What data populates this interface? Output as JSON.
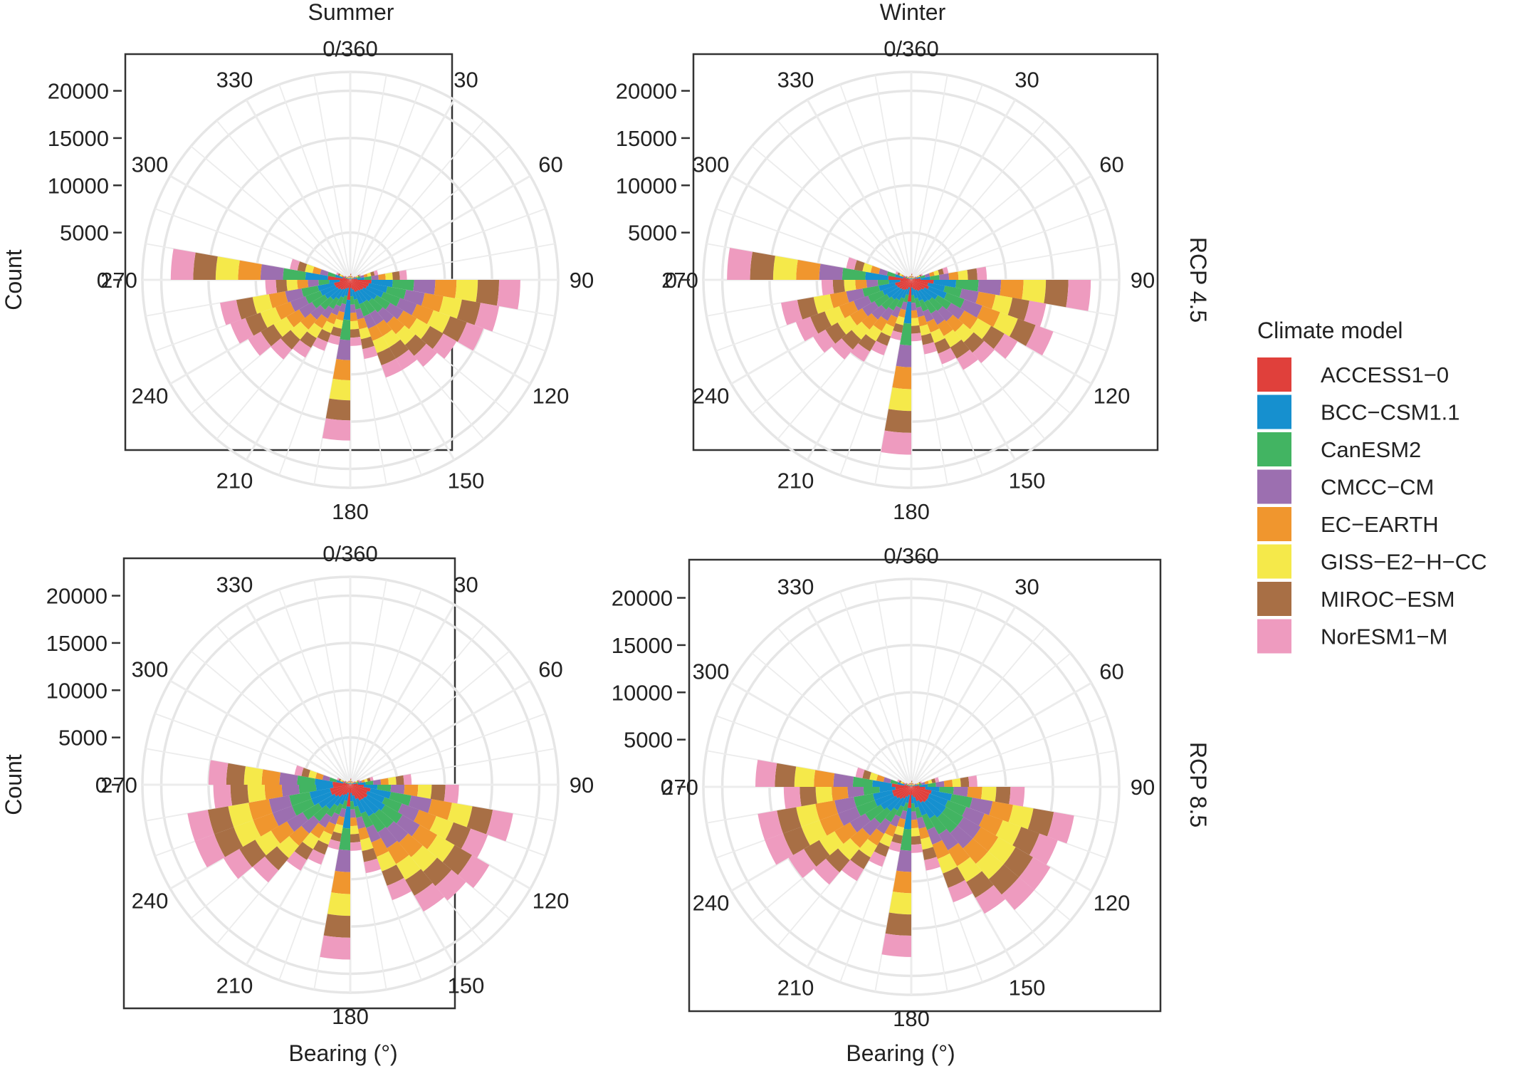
{
  "columns": [
    "Summer",
    "Winter"
  ],
  "rows": [
    "RCP 4.5",
    "RCP 8.5"
  ],
  "legend": {
    "title": "Climate model",
    "placement": "right",
    "items": [
      {
        "name": "ACCESS1−0",
        "color": "#e0403b"
      },
      {
        "name": "BCC−CSM1.1",
        "color": "#1690cf"
      },
      {
        "name": "CanESM2",
        "color": "#42b462"
      },
      {
        "name": "CMCC−CM",
        "color": "#9c6fb0"
      },
      {
        "name": "EC−EARTH",
        "color": "#f0962e"
      },
      {
        "name": "GISS−E2−H−CC",
        "color": "#f5e94a"
      },
      {
        "name": "MIROC−ESM",
        "color": "#a86f45"
      },
      {
        "name": "NorESM1−M",
        "color": "#ee9bbf"
      }
    ]
  },
  "chart_data": {
    "type": "bar",
    "subtype": "stacked-polar-histogram",
    "xlabel": "Bearing (°)",
    "ylabel": "Count",
    "x_ticks": [
      "0/360",
      "30",
      "60",
      "90",
      "120",
      "150",
      "180",
      "210",
      "240",
      "270",
      "300",
      "330"
    ],
    "y_ticks": [
      0,
      5000,
      10000,
      15000,
      20000
    ],
    "ylim": [
      0,
      22000
    ],
    "grid": true,
    "bin_width_deg": 10,
    "bins_deg": [
      0,
      10,
      20,
      30,
      40,
      50,
      60,
      70,
      80,
      90,
      100,
      110,
      120,
      130,
      140,
      150,
      160,
      170,
      180,
      190,
      200,
      210,
      220,
      230,
      240,
      250,
      260,
      270,
      280,
      290,
      300,
      310,
      320,
      330,
      340,
      350
    ],
    "series_order": [
      "ACCESS1−0",
      "BCC−CSM1.1",
      "CanESM2",
      "CMCC−CM",
      "EC−EARTH",
      "GISS−E2−H−CC",
      "MIROC−ESM",
      "NorESM1−M"
    ],
    "panels": [
      {
        "column": "Summer",
        "row": "RCP 4.5",
        "bin_totals": [
          700,
          450,
          450,
          450,
          380,
          600,
          1200,
          3000,
          6000,
          18000,
          16000,
          15000,
          13000,
          12000,
          11000,
          11000,
          8500,
          7000,
          17000,
          7000,
          8000,
          9500,
          11000,
          12500,
          13500,
          14000,
          9000,
          19000,
          6500,
          1600,
          700,
          450,
          450,
          450,
          450,
          450
        ]
      },
      {
        "column": "Winter",
        "row": "RCP 4.5",
        "bin_totals": [
          700,
          450,
          450,
          450,
          380,
          600,
          1300,
          4000,
          8000,
          19000,
          14500,
          16000,
          13000,
          11500,
          11000,
          9500,
          8000,
          6500,
          18500,
          6500,
          8500,
          10000,
          11000,
          12000,
          13000,
          14000,
          9500,
          19500,
          7000,
          1800,
          700,
          450,
          450,
          450,
          450,
          450
        ]
      },
      {
        "column": "Summer",
        "row": "RCP 8.5",
        "bin_totals": [
          700,
          450,
          450,
          450,
          400,
          600,
          1100,
          2500,
          6500,
          11500,
          17500,
          15500,
          17000,
          16000,
          15500,
          13000,
          9500,
          7000,
          18500,
          7000,
          9000,
          10500,
          13500,
          15500,
          17500,
          17500,
          14500,
          15000,
          6000,
          1500,
          700,
          450,
          450,
          450,
          450,
          450
        ]
      },
      {
        "column": "Winter",
        "row": "RCP 8.5",
        "bin_totals": [
          700,
          450,
          450,
          450,
          400,
          600,
          1200,
          3000,
          7000,
          12000,
          17500,
          16500,
          17000,
          17000,
          15500,
          13000,
          9000,
          7000,
          18000,
          7000,
          9000,
          11500,
          13500,
          15000,
          16500,
          16500,
          13500,
          16500,
          6000,
          1600,
          700,
          450,
          450,
          450,
          450,
          450
        ]
      }
    ]
  }
}
